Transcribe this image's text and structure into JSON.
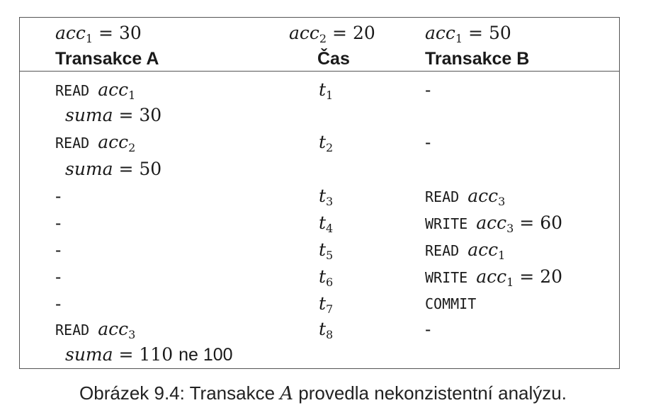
{
  "top_row": {
    "a": {
      "var": "acc",
      "sub": "1",
      "eq": " = 30"
    },
    "mid": {
      "var": "acc",
      "sub": "2",
      "eq": " = 20"
    },
    "b": {
      "var": "acc",
      "sub": "1",
      "eq": " = 50"
    }
  },
  "headers": {
    "a": "Transakce A",
    "time": "Čas",
    "b": "Transakce B"
  },
  "rows": [
    {
      "a_cmd": "READ ",
      "a_var": "acc",
      "a_sub": "1",
      "t": "t",
      "t_sub": "1",
      "b": "-"
    },
    {
      "a_sum": "suma",
      "a_eq": " = 30"
    },
    {
      "a_cmd": "READ ",
      "a_var": "acc",
      "a_sub": "2",
      "t": "t",
      "t_sub": "2",
      "b": "-"
    },
    {
      "a_sum": "suma",
      "a_eq": " = 50"
    },
    {
      "a_dash": "-",
      "t": "t",
      "t_sub": "3",
      "b_cmd": "READ ",
      "b_var": "acc",
      "b_sub": "3"
    },
    {
      "a_dash": "-",
      "t": "t",
      "t_sub": "4",
      "b_cmd": "WRITE ",
      "b_var": "acc",
      "b_sub": "3",
      "b_eq": " = 60"
    },
    {
      "a_dash": "-",
      "t": "t",
      "t_sub": "5",
      "b_cmd": "READ ",
      "b_var": "acc",
      "b_sub": "1"
    },
    {
      "a_dash": "-",
      "t": "t",
      "t_sub": "6",
      "b_cmd": "WRITE ",
      "b_var": "acc",
      "b_sub": "1",
      "b_eq": " = 20"
    },
    {
      "a_dash": "-",
      "t": "t",
      "t_sub": "7",
      "b_cmd": "COMMIT"
    },
    {
      "a_cmd": "READ ",
      "a_var": "acc",
      "a_sub": "3",
      "t": "t",
      "t_sub": "8",
      "b": "-"
    },
    {
      "a_sum": "suma",
      "a_eq": " = 110 ",
      "a_tail": "ne 100"
    }
  ],
  "caption": {
    "prefix": "Obrázek 9.4: Transakce ",
    "var": "A",
    "suffix": " provedla nekonzistentní analýzu."
  }
}
